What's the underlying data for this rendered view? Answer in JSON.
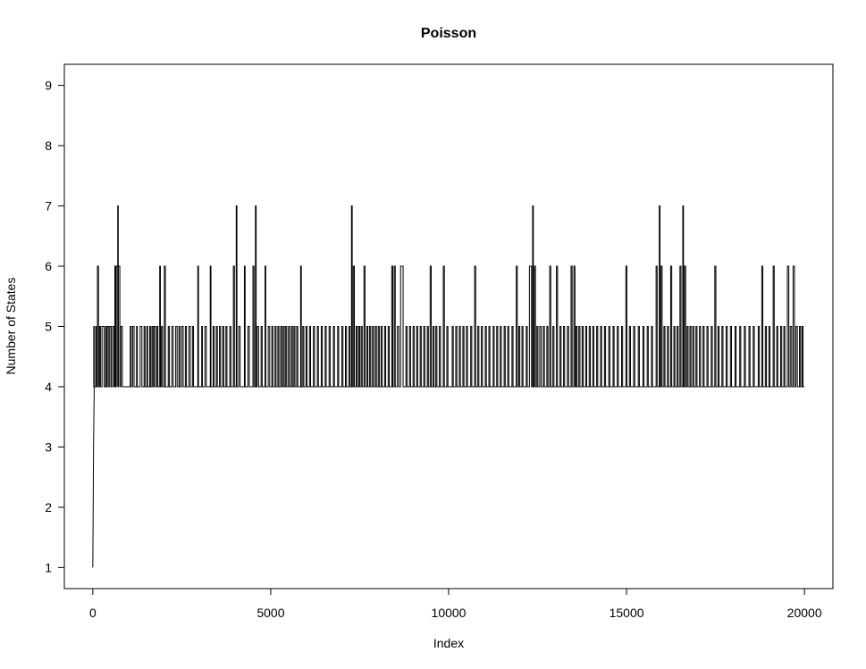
{
  "chart_data": {
    "type": "line",
    "title": "Poisson",
    "xlabel": "Index",
    "ylabel": "Number of States",
    "xlim": [
      -800,
      20800
    ],
    "ylim": [
      0.65,
      9.35
    ],
    "x_ticks": [
      0,
      5000,
      10000,
      15000,
      20000
    ],
    "x_tick_labels": [
      "0",
      "5000",
      "10000",
      "15000",
      "20000"
    ],
    "y_ticks": [
      1,
      2,
      3,
      4,
      5,
      6,
      7,
      8,
      9
    ],
    "y_tick_labels": [
      "1",
      "2",
      "3",
      "4",
      "5",
      "6",
      "7",
      "8",
      "9"
    ],
    "grid": false,
    "series": [
      {
        "color": "#000000",
        "style": "step",
        "x_start": 0,
        "x_end": 20000,
        "initial": [
          [
            0,
            1
          ],
          [
            10,
            2
          ],
          [
            20,
            3
          ],
          [
            40,
            4
          ]
        ],
        "final_value": 4,
        "excursions": [
          [
            25,
            35,
            5
          ],
          [
            80,
            100,
            5
          ],
          [
            130,
            160,
            6
          ],
          [
            190,
            220,
            5
          ],
          [
            260,
            320,
            5
          ],
          [
            360,
            380,
            5
          ],
          [
            410,
            450,
            5
          ],
          [
            480,
            520,
            5
          ],
          [
            560,
            600,
            5
          ],
          [
            620,
            640,
            6
          ],
          [
            660,
            700,
            6
          ],
          [
            700,
            715,
            7
          ],
          [
            720,
            760,
            6
          ],
          [
            790,
            830,
            5
          ],
          [
            1050,
            1080,
            5
          ],
          [
            1120,
            1160,
            5
          ],
          [
            1230,
            1250,
            5
          ],
          [
            1330,
            1380,
            5
          ],
          [
            1440,
            1470,
            5
          ],
          [
            1520,
            1540,
            5
          ],
          [
            1600,
            1620,
            5
          ],
          [
            1660,
            1690,
            5
          ],
          [
            1720,
            1760,
            5
          ],
          [
            1800,
            1830,
            5
          ],
          [
            1880,
            1900,
            6
          ],
          [
            1930,
            1960,
            5
          ],
          [
            2010,
            2040,
            6
          ],
          [
            2120,
            2150,
            5
          ],
          [
            2220,
            2260,
            5
          ],
          [
            2330,
            2370,
            5
          ],
          [
            2420,
            2450,
            5
          ],
          [
            2500,
            2540,
            5
          ],
          [
            2600,
            2630,
            5
          ],
          [
            2700,
            2740,
            5
          ],
          [
            2800,
            2830,
            5
          ],
          [
            2950,
            2970,
            6
          ],
          [
            3060,
            3080,
            5
          ],
          [
            3150,
            3190,
            5
          ],
          [
            3300,
            3320,
            6
          ],
          [
            3380,
            3410,
            5
          ],
          [
            3470,
            3500,
            5
          ],
          [
            3560,
            3590,
            5
          ],
          [
            3650,
            3680,
            5
          ],
          [
            3740,
            3770,
            5
          ],
          [
            3850,
            3880,
            5
          ],
          [
            3950,
            3980,
            6
          ],
          [
            4030,
            4050,
            7
          ],
          [
            4100,
            4140,
            5
          ],
          [
            4260,
            4280,
            6
          ],
          [
            4360,
            4400,
            5
          ],
          [
            4500,
            4530,
            6
          ],
          [
            4570,
            4590,
            7
          ],
          [
            4620,
            4660,
            5
          ],
          [
            4730,
            4760,
            5
          ],
          [
            4840,
            4860,
            6
          ],
          [
            4930,
            4970,
            5
          ],
          [
            5030,
            5060,
            5
          ],
          [
            5120,
            5150,
            5
          ],
          [
            5200,
            5230,
            5
          ],
          [
            5280,
            5310,
            5
          ],
          [
            5350,
            5380,
            5
          ],
          [
            5420,
            5450,
            5
          ],
          [
            5500,
            5530,
            5
          ],
          [
            5580,
            5610,
            5
          ],
          [
            5650,
            5680,
            5
          ],
          [
            5730,
            5760,
            5
          ],
          [
            5840,
            5860,
            6
          ],
          [
            5900,
            5930,
            5
          ],
          [
            5990,
            6020,
            5
          ],
          [
            6090,
            6120,
            5
          ],
          [
            6200,
            6230,
            5
          ],
          [
            6310,
            6340,
            5
          ],
          [
            6420,
            6450,
            5
          ],
          [
            6530,
            6560,
            5
          ],
          [
            6640,
            6670,
            5
          ],
          [
            6760,
            6790,
            5
          ],
          [
            6880,
            6910,
            5
          ],
          [
            7000,
            7030,
            5
          ],
          [
            7100,
            7130,
            5
          ],
          [
            7200,
            7230,
            5
          ],
          [
            7270,
            7290,
            7
          ],
          [
            7320,
            7350,
            6
          ],
          [
            7400,
            7430,
            5
          ],
          [
            7470,
            7500,
            5
          ],
          [
            7540,
            7570,
            5
          ],
          [
            7620,
            7650,
            6
          ],
          [
            7700,
            7730,
            5
          ],
          [
            7780,
            7810,
            5
          ],
          [
            7860,
            7890,
            5
          ],
          [
            7940,
            7970,
            5
          ],
          [
            8020,
            8050,
            5
          ],
          [
            8100,
            8130,
            5
          ],
          [
            8200,
            8230,
            5
          ],
          [
            8300,
            8330,
            5
          ],
          [
            8400,
            8430,
            6
          ],
          [
            8470,
            8500,
            6
          ],
          [
            8560,
            8600,
            5
          ],
          [
            8650,
            8720,
            6
          ],
          [
            8800,
            8830,
            5
          ],
          [
            8900,
            8930,
            5
          ],
          [
            9000,
            9030,
            5
          ],
          [
            9100,
            9130,
            5
          ],
          [
            9200,
            9230,
            5
          ],
          [
            9300,
            9330,
            5
          ],
          [
            9400,
            9430,
            5
          ],
          [
            9480,
            9510,
            6
          ],
          [
            9560,
            9590,
            5
          ],
          [
            9640,
            9670,
            5
          ],
          [
            9740,
            9770,
            5
          ],
          [
            9850,
            9880,
            6
          ],
          [
            9950,
            9980,
            5
          ],
          [
            10100,
            10130,
            5
          ],
          [
            10200,
            10230,
            5
          ],
          [
            10300,
            10330,
            5
          ],
          [
            10400,
            10430,
            5
          ],
          [
            10500,
            10530,
            5
          ],
          [
            10620,
            10650,
            5
          ],
          [
            10730,
            10760,
            6
          ],
          [
            10820,
            10850,
            5
          ],
          [
            10920,
            10950,
            5
          ],
          [
            11030,
            11060,
            5
          ],
          [
            11130,
            11160,
            5
          ],
          [
            11250,
            11280,
            5
          ],
          [
            11350,
            11380,
            5
          ],
          [
            11450,
            11480,
            5
          ],
          [
            11560,
            11590,
            5
          ],
          [
            11660,
            11690,
            5
          ],
          [
            11780,
            11810,
            5
          ],
          [
            11900,
            11930,
            6
          ],
          [
            11970,
            12000,
            5
          ],
          [
            12060,
            12090,
            5
          ],
          [
            12180,
            12210,
            5
          ],
          [
            12270,
            12330,
            6
          ],
          [
            12360,
            12380,
            7
          ],
          [
            12410,
            12440,
            6
          ],
          [
            12480,
            12510,
            5
          ],
          [
            12560,
            12600,
            5
          ],
          [
            12660,
            12690,
            5
          ],
          [
            12760,
            12790,
            5
          ],
          [
            12840,
            12870,
            6
          ],
          [
            12930,
            12960,
            5
          ],
          [
            13030,
            13060,
            6
          ],
          [
            13130,
            13160,
            5
          ],
          [
            13230,
            13260,
            5
          ],
          [
            13340,
            13370,
            5
          ],
          [
            13440,
            13470,
            6
          ],
          [
            13520,
            13550,
            6
          ],
          [
            13580,
            13610,
            5
          ],
          [
            13660,
            13690,
            5
          ],
          [
            13750,
            13780,
            5
          ],
          [
            13850,
            13880,
            5
          ],
          [
            13950,
            13980,
            5
          ],
          [
            14050,
            14080,
            5
          ],
          [
            14160,
            14190,
            5
          ],
          [
            14270,
            14300,
            5
          ],
          [
            14380,
            14410,
            5
          ],
          [
            14500,
            14530,
            5
          ],
          [
            14620,
            14650,
            5
          ],
          [
            14740,
            14770,
            5
          ],
          [
            14860,
            14890,
            5
          ],
          [
            14980,
            15010,
            6
          ],
          [
            15080,
            15110,
            5
          ],
          [
            15200,
            15230,
            5
          ],
          [
            15330,
            15360,
            5
          ],
          [
            15460,
            15490,
            5
          ],
          [
            15580,
            15610,
            5
          ],
          [
            15700,
            15730,
            5
          ],
          [
            15830,
            15860,
            6
          ],
          [
            15920,
            15940,
            7
          ],
          [
            15970,
            16000,
            6
          ],
          [
            16050,
            16080,
            5
          ],
          [
            16150,
            16180,
            5
          ],
          [
            16240,
            16270,
            6
          ],
          [
            16330,
            16360,
            5
          ],
          [
            16420,
            16450,
            5
          ],
          [
            16500,
            16530,
            6
          ],
          [
            16580,
            16600,
            7
          ],
          [
            16630,
            16660,
            6
          ],
          [
            16700,
            16730,
            5
          ],
          [
            16780,
            16810,
            5
          ],
          [
            16860,
            16890,
            5
          ],
          [
            16950,
            16980,
            5
          ],
          [
            17050,
            17080,
            5
          ],
          [
            17150,
            17180,
            5
          ],
          [
            17260,
            17290,
            5
          ],
          [
            17380,
            17410,
            5
          ],
          [
            17480,
            17510,
            6
          ],
          [
            17570,
            17600,
            5
          ],
          [
            17680,
            17710,
            5
          ],
          [
            17800,
            17830,
            5
          ],
          [
            17920,
            17950,
            5
          ],
          [
            18050,
            18080,
            5
          ],
          [
            18180,
            18210,
            5
          ],
          [
            18310,
            18340,
            5
          ],
          [
            18440,
            18470,
            5
          ],
          [
            18560,
            18590,
            5
          ],
          [
            18700,
            18730,
            5
          ],
          [
            18800,
            18830,
            6
          ],
          [
            18900,
            18930,
            5
          ],
          [
            19000,
            19030,
            5
          ],
          [
            19120,
            19150,
            6
          ],
          [
            19220,
            19250,
            5
          ],
          [
            19330,
            19360,
            5
          ],
          [
            19420,
            19450,
            5
          ],
          [
            19520,
            19560,
            6
          ],
          [
            19600,
            19640,
            5
          ],
          [
            19680,
            19720,
            6
          ],
          [
            19760,
            19800,
            5
          ],
          [
            19860,
            19890,
            5
          ],
          [
            19930,
            19960,
            5
          ]
        ]
      }
    ]
  }
}
